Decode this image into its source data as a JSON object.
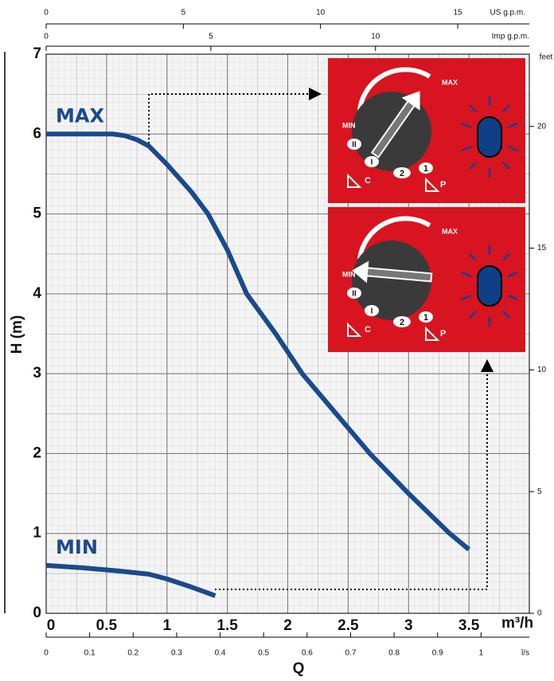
{
  "chart_data": {
    "type": "line",
    "x_label": "Q",
    "x_unit": "m³/h",
    "y_label": "H (m)",
    "xlim": [
      0,
      4
    ],
    "xticks": [
      0,
      0.5,
      1,
      1.5,
      2,
      2.5,
      3,
      3.5
    ],
    "ylim": [
      0,
      7
    ],
    "yticks": [
      0,
      1,
      2,
      3,
      4,
      5,
      6,
      7
    ],
    "grid": true,
    "series": [
      {
        "name": "MAX",
        "color": "#1b4a8c",
        "x": [
          0,
          0.55,
          0.65,
          0.75,
          0.85,
          1.0,
          1.2,
          1.34,
          1.5,
          1.66,
          1.9,
          2.12,
          2.4,
          2.68,
          3.0,
          3.34,
          3.5
        ],
        "values": [
          6,
          6,
          5.98,
          5.93,
          5.85,
          5.62,
          5.28,
          5.0,
          4.55,
          4.0,
          3.5,
          3.0,
          2.5,
          2.0,
          1.5,
          1.0,
          0.8
        ]
      },
      {
        "name": "MIN",
        "color": "#1b4a8c",
        "x": [
          0,
          0.3,
          0.6,
          0.85,
          1.0,
          1.2,
          1.4
        ],
        "values": [
          0.6,
          0.57,
          0.53,
          0.49,
          0.43,
          0.33,
          0.22
        ]
      }
    ],
    "secondary_axes": {
      "us_gpm": {
        "label": "US g.p.m.",
        "lim": [
          0,
          17.61
        ],
        "ticks": [
          0,
          5,
          10,
          15
        ]
      },
      "imp_gpm": {
        "label": "Imp g.p.m.",
        "lim": [
          0,
          14.67
        ],
        "ticks": [
          0,
          5,
          10
        ]
      },
      "ls": {
        "label": "l/s",
        "lim": [
          0,
          1.111
        ],
        "ticks": [
          0,
          0.1,
          0.2,
          0.3,
          0.4,
          0.5,
          0.6,
          0.7,
          0.8,
          0.9,
          1
        ]
      },
      "feet": {
        "label": "feet",
        "lim": [
          0,
          22.97
        ],
        "ticks": [
          0,
          5,
          10,
          15,
          20
        ]
      }
    },
    "knob_labels": {
      "max": "MAX",
      "min": "MIN",
      "ii": "II",
      "i": "I",
      "two": "2",
      "one": "1",
      "c": "C",
      "p": "P"
    }
  }
}
